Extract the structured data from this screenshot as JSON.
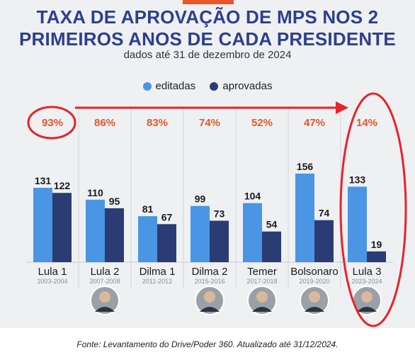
{
  "header": {
    "title_line1": "TAXA DE APROVAÇÃO DE MPS NOS 2",
    "title_line2": "PRIMEIROS ANOS DE CADA PRESIDENTE",
    "subtitle": "dados até 31 de dezembro de 2024"
  },
  "footnote": "Fonte: Levantamento do Drive/Poder 360. Atualizado até 31/12/2024.",
  "colors": {
    "editadas": "#4a95e4",
    "aprovadas": "#2b3b73",
    "percent": "#e8562a",
    "highlight": "#e8232a",
    "title": "#2e3f8f"
  },
  "chart_data": {
    "type": "bar",
    "title": "TAXA DE APROVAÇÃO DE MPS NOS 2 PRIMEIROS ANOS DE CADA PRESIDENTE",
    "subtitle": "dados até 31 de dezembro de 2024",
    "categories": [
      "Lula 1",
      "Lula 2",
      "Dilma 1",
      "Dilma 2",
      "Temer",
      "Bolsonaro",
      "Lula 3"
    ],
    "periods": [
      "2003-2004",
      "2007-2008",
      "2011-2012",
      "2015-2016",
      "2017-2018",
      "2019-2020",
      "2023-2024"
    ],
    "approval_rates": [
      "93%",
      "86%",
      "83%",
      "74%",
      "52%",
      "47%",
      "14%"
    ],
    "series": [
      {
        "name": "editadas",
        "values": [
          131,
          110,
          81,
          99,
          104,
          156,
          133
        ]
      },
      {
        "name": "aprovadas",
        "values": [
          122,
          95,
          67,
          73,
          54,
          74,
          19
        ]
      }
    ],
    "ylim": [
      0,
      165
    ],
    "legend": "top-center",
    "grid": false,
    "highlighted": [
      "Lula 1",
      "Lula 3"
    ]
  }
}
